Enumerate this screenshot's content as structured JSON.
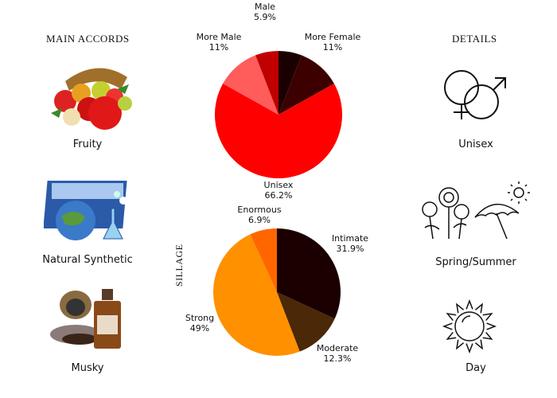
{
  "main_accords": {
    "heading": "MAIN ACCORDS",
    "items": [
      {
        "label": "Fruity",
        "icon": "fruit-basket-image"
      },
      {
        "label": "Natural Synthetic",
        "icon": "earth-flask-image"
      },
      {
        "label": "Musky",
        "icon": "musk-bottle-image"
      }
    ]
  },
  "details": {
    "heading": "DETAILS",
    "items": [
      {
        "label": "Unisex",
        "icon": "gender-symbols-icon"
      },
      {
        "label": "Spring/Summer",
        "icon": "flowers-umbrella-icon"
      },
      {
        "label": "Day",
        "icon": "sun-icon"
      }
    ]
  },
  "chart_data": [
    {
      "type": "pie",
      "slices": [
        {
          "name": "",
          "value": 5.9,
          "color": "#1a0000"
        },
        {
          "name": "More Female",
          "value": 11,
          "label": "11%",
          "color": "#3d0000"
        },
        {
          "name": "Unisex",
          "value": 66.2,
          "label": "66.2%",
          "color": "#ff0000"
        },
        {
          "name": "More Male",
          "value": 11,
          "label": "11%",
          "color": "#ff5c5c"
        },
        {
          "name": "Male",
          "value": 5.9,
          "label": "5.9%",
          "color": "#c00000"
        }
      ]
    },
    {
      "type": "pie",
      "title": "SILLAGE",
      "slices": [
        {
          "name": "Intimate",
          "value": 31.9,
          "label": "31.9%",
          "color": "#1a0000"
        },
        {
          "name": "Moderate",
          "value": 12.3,
          "label": "12.3%",
          "color": "#4a2808"
        },
        {
          "name": "Strong",
          "value": 49,
          "label": "49%",
          "color": "#ff9000"
        },
        {
          "name": "Enormous",
          "value": 6.9,
          "label": "6.9%",
          "color": "#ff6600"
        }
      ]
    }
  ]
}
